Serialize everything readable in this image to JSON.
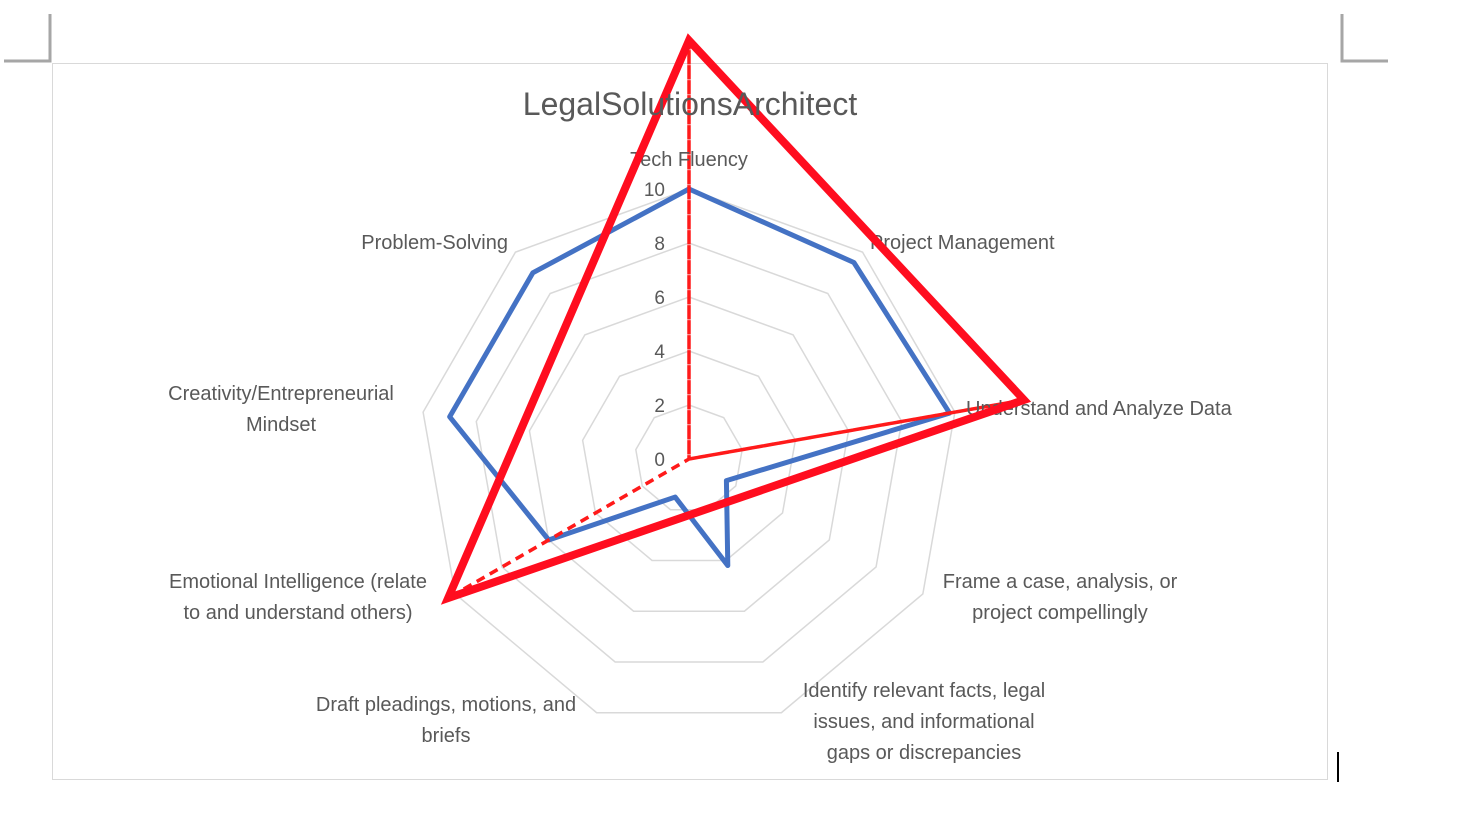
{
  "chart_data": {
    "type": "radar",
    "title": "LegalSolutionsArchitect",
    "axis": {
      "min": 0,
      "max": 10,
      "step": 2,
      "ticks": [
        "0",
        "2",
        "4",
        "6",
        "8",
        "10"
      ]
    },
    "grid": true,
    "categories": [
      [
        "Tech Fluency"
      ],
      [
        "Project Management"
      ],
      [
        "Understand and Analyze Data"
      ],
      [
        "Frame a case, analysis, or",
        "project compellingly"
      ],
      [
        "Identify relevant facts, legal",
        "issues, and informational",
        "gaps or discrepancies"
      ],
      [
        "Draft pleadings, motions, and",
        "briefs"
      ],
      [
        "Emotional Intelligence (relate",
        "to and understand others)"
      ],
      [
        "Creativity/Entrepreneurial",
        "Mindset"
      ],
      [
        "Problem-Solving"
      ]
    ],
    "series": [
      {
        "color": "#4472c4",
        "style": "solid",
        "values": [
          10,
          9.5,
          9.8,
          1.6,
          4.2,
          1.5,
          6,
          9,
          9
        ]
      },
      {
        "color": "#ff1a1a",
        "style": "dashed",
        "values": [
          15.5,
          0,
          12.6,
          0,
          0,
          0,
          10.3,
          0,
          0
        ]
      }
    ]
  },
  "annotation": {
    "color": "#ff0d1f",
    "shape": "triangle",
    "points": [
      [
        15.5,
        "Tech Fluency"
      ],
      [
        12.6,
        "Understand and Analyze Data"
      ],
      [
        10.3,
        "Emotional Intelligence"
      ]
    ]
  }
}
